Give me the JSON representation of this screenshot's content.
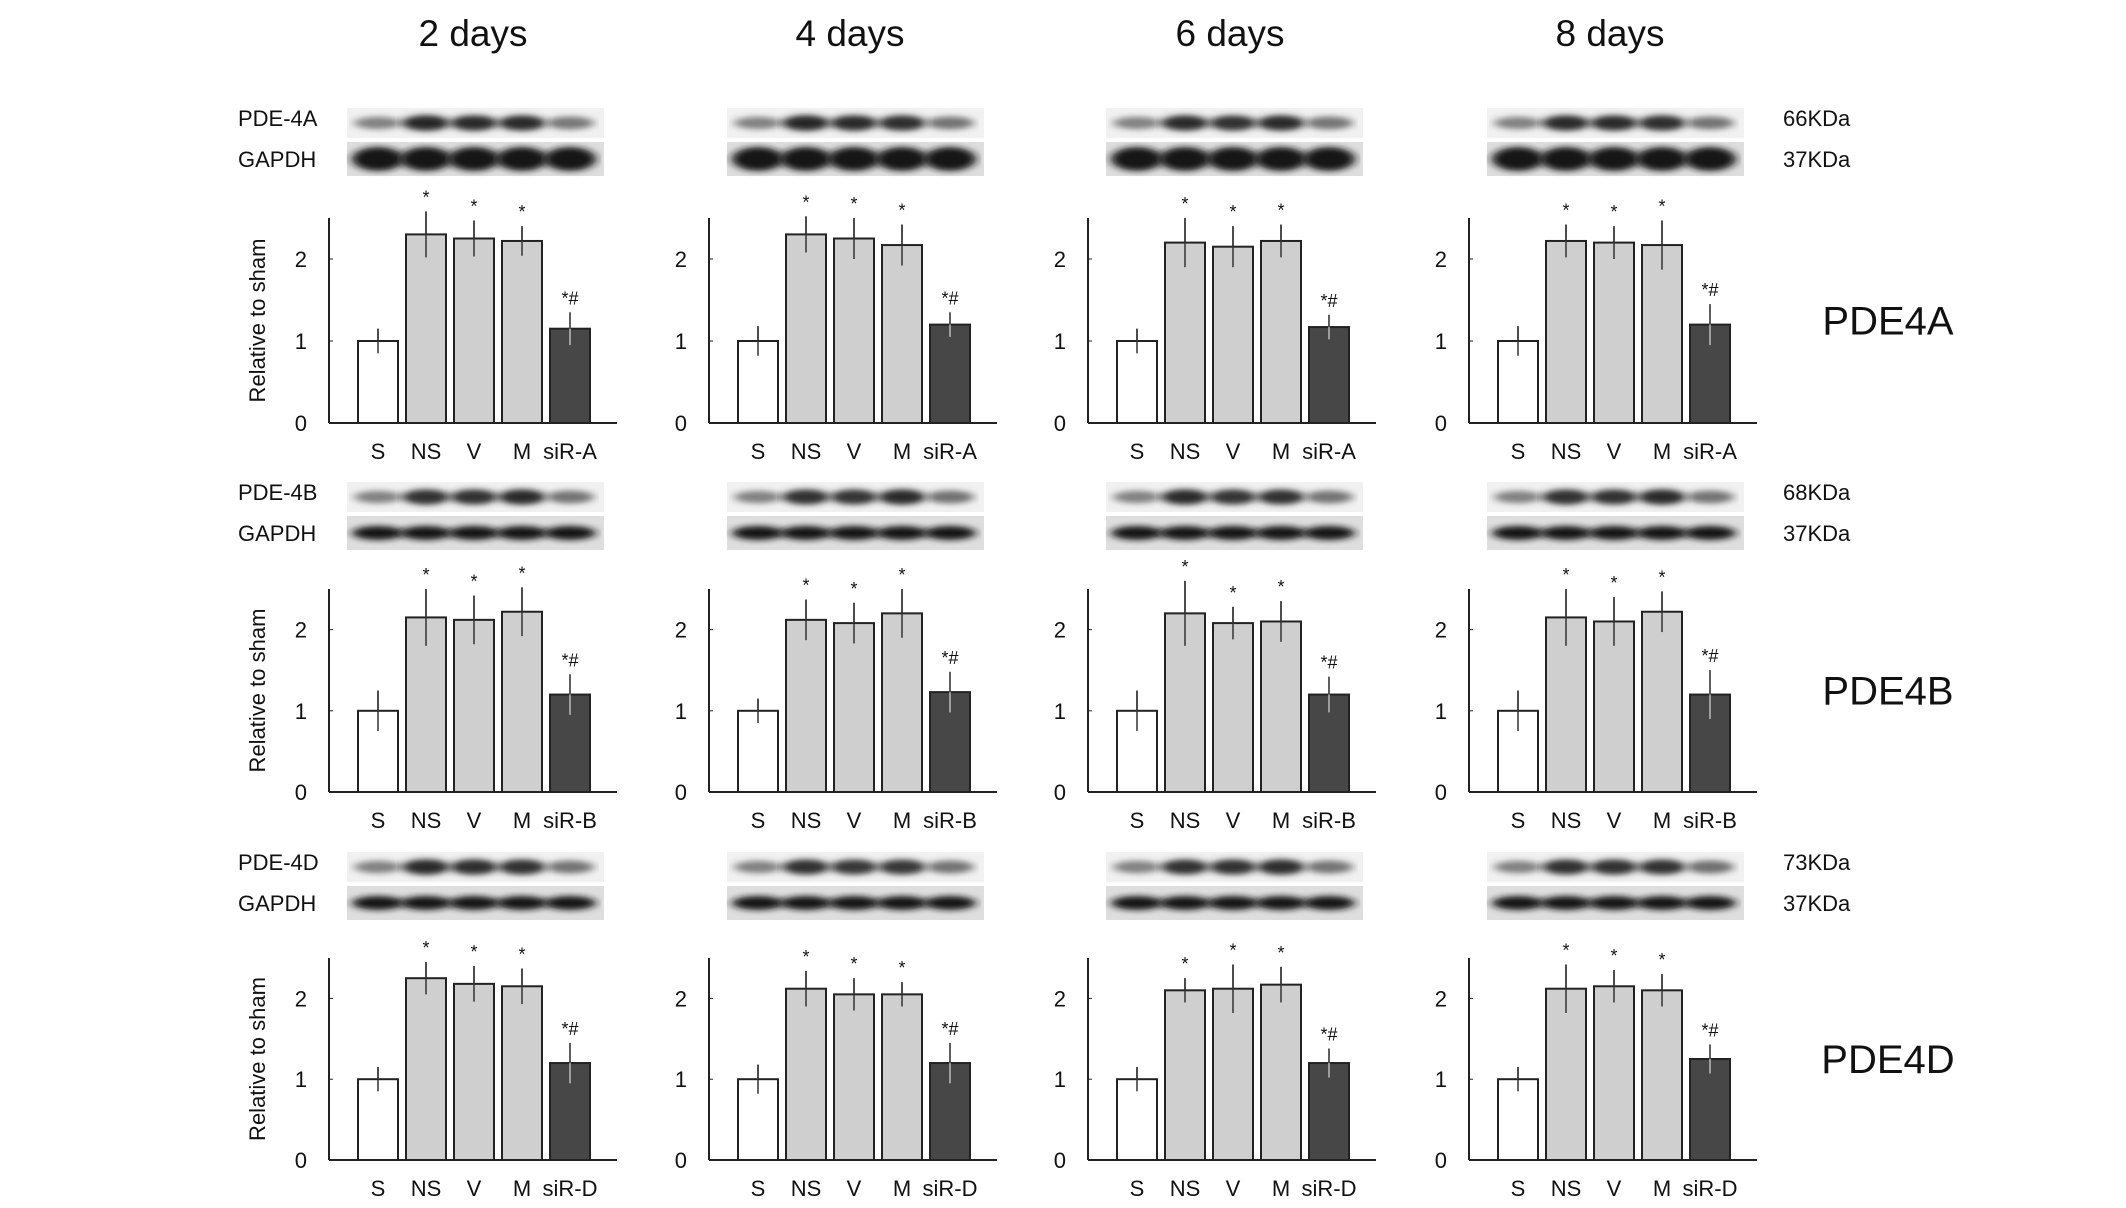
{
  "column_titles": [
    "2 days",
    "4 days",
    "6 days",
    "8 days"
  ],
  "colors": {
    "sham": "#ffffff",
    "control": "#cfcfcf",
    "sirna": "#474747",
    "axis": "#222222"
  },
  "chart_data": [
    {
      "type": "bar",
      "protein": "PDE4A",
      "blot_label": "PDE-4A",
      "loading_label": "GAPDH",
      "kda": [
        "66KDa",
        "37KDa"
      ],
      "ylabel": "Relative to sham",
      "ylim": [
        0,
        2.5
      ],
      "yticks": [
        "0",
        "1",
        "2"
      ],
      "categories": [
        "S",
        "NS",
        "V",
        "M",
        "siR-A"
      ],
      "annotations": [
        "",
        "*",
        "*",
        "*",
        "*#"
      ],
      "series": [
        {
          "name": "2 days",
          "values": [
            1.0,
            2.3,
            2.25,
            2.22,
            1.15
          ],
          "errors": [
            0.15,
            0.28,
            0.22,
            0.18,
            0.2
          ]
        },
        {
          "name": "4 days",
          "values": [
            1.0,
            2.3,
            2.25,
            2.17,
            1.2
          ],
          "errors": [
            0.18,
            0.22,
            0.25,
            0.25,
            0.15
          ]
        },
        {
          "name": "6 days",
          "values": [
            1.0,
            2.2,
            2.15,
            2.22,
            1.17
          ],
          "errors": [
            0.15,
            0.3,
            0.25,
            0.2,
            0.15
          ]
        },
        {
          "name": "8 days",
          "values": [
            1.0,
            2.22,
            2.2,
            2.17,
            1.2
          ],
          "errors": [
            0.18,
            0.2,
            0.2,
            0.3,
            0.25
          ]
        }
      ]
    },
    {
      "type": "bar",
      "protein": "PDE4B",
      "blot_label": "PDE-4B",
      "loading_label": "GAPDH",
      "kda": [
        "68KDa",
        "37KDa"
      ],
      "ylabel": "Relative to sham",
      "ylim": [
        0,
        2.5
      ],
      "yticks": [
        "0",
        "1",
        "2"
      ],
      "categories": [
        "S",
        "NS",
        "V",
        "M",
        "siR-B"
      ],
      "annotations": [
        "",
        "*",
        "*",
        "*",
        "*#"
      ],
      "series": [
        {
          "name": "2 days",
          "values": [
            1.0,
            2.15,
            2.12,
            2.22,
            1.2
          ],
          "errors": [
            0.25,
            0.35,
            0.3,
            0.3,
            0.25
          ]
        },
        {
          "name": "4 days",
          "values": [
            1.0,
            2.12,
            2.08,
            2.2,
            1.23
          ],
          "errors": [
            0.15,
            0.25,
            0.25,
            0.3,
            0.25
          ]
        },
        {
          "name": "6 days",
          "values": [
            1.0,
            2.2,
            2.08,
            2.1,
            1.2
          ],
          "errors": [
            0.25,
            0.4,
            0.2,
            0.25,
            0.22
          ]
        },
        {
          "name": "8 days",
          "values": [
            1.0,
            2.15,
            2.1,
            2.22,
            1.2
          ],
          "errors": [
            0.25,
            0.35,
            0.3,
            0.25,
            0.3
          ]
        }
      ]
    },
    {
      "type": "bar",
      "protein": "PDE4D",
      "blot_label": "PDE-4D",
      "loading_label": "GAPDH",
      "kda": [
        "73KDa",
        "37KDa"
      ],
      "ylabel": "Relative to sham",
      "ylim": [
        0,
        2.5
      ],
      "yticks": [
        "0",
        "1",
        "2"
      ],
      "categories": [
        "S",
        "NS",
        "V",
        "M",
        "siR-D"
      ],
      "annotations": [
        "",
        "*",
        "*",
        "*",
        "*#"
      ],
      "series": [
        {
          "name": "2 days",
          "values": [
            1.0,
            2.25,
            2.18,
            2.15,
            1.2
          ],
          "errors": [
            0.15,
            0.2,
            0.22,
            0.22,
            0.25
          ]
        },
        {
          "name": "4 days",
          "values": [
            1.0,
            2.12,
            2.05,
            2.05,
            1.2
          ],
          "errors": [
            0.18,
            0.22,
            0.2,
            0.15,
            0.25
          ]
        },
        {
          "name": "6 days",
          "values": [
            1.0,
            2.1,
            2.12,
            2.17,
            1.2
          ],
          "errors": [
            0.15,
            0.15,
            0.3,
            0.22,
            0.18
          ]
        },
        {
          "name": "8 days",
          "values": [
            1.0,
            2.12,
            2.15,
            2.1,
            1.25
          ],
          "errors": [
            0.15,
            0.3,
            0.2,
            0.2,
            0.18
          ]
        }
      ]
    }
  ]
}
